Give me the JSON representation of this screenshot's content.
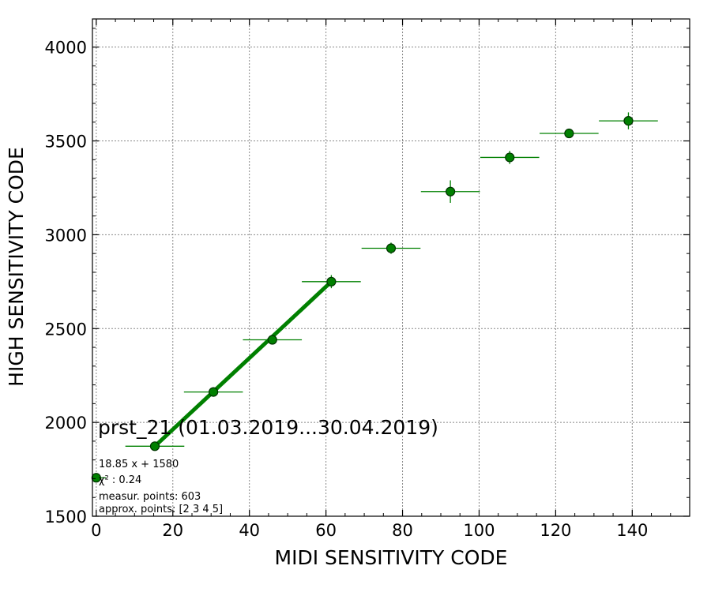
{
  "chart_data": {
    "type": "scatter",
    "title": "prst_21 (01.03.2019...30.04.2019)",
    "xlabel": "MIDI SENSITIVITY CODE",
    "ylabel": "HIGH SENSITIVITY CODE",
    "xlim": [
      -1,
      155
    ],
    "ylim": [
      1500,
      4150
    ],
    "xticks": [
      0,
      20,
      40,
      60,
      80,
      100,
      120,
      140
    ],
    "yticks": [
      1500,
      2000,
      2500,
      3000,
      3500,
      4000
    ],
    "grid": true,
    "colors": {
      "marker_fill": "#008000",
      "marker_edge": "#003300",
      "fit_line": "#008000",
      "errorbar": "#008000"
    },
    "series": [
      {
        "kind": "measurements",
        "points": [
          {
            "x": 0,
            "y": 1705,
            "xerr": 0,
            "yerr": 0
          },
          {
            "x": 15.3,
            "y": 1873,
            "xerr": 7.7,
            "yerr": 8
          },
          {
            "x": 30.6,
            "y": 2162,
            "xerr": 7.7,
            "yerr": 12
          },
          {
            "x": 46,
            "y": 2440,
            "xerr": 7.7,
            "yerr": 25
          },
          {
            "x": 61.4,
            "y": 2750,
            "xerr": 7.7,
            "yerr": 35
          },
          {
            "x": 77,
            "y": 2928,
            "xerr": 7.7,
            "yerr": 30
          },
          {
            "x": 92.5,
            "y": 3230,
            "xerr": 7.7,
            "yerr": 60
          },
          {
            "x": 108,
            "y": 3412,
            "xerr": 7.7,
            "yerr": 35
          },
          {
            "x": 123.5,
            "y": 3540,
            "xerr": 7.7,
            "yerr": 25
          },
          {
            "x": 139,
            "y": 3607,
            "xerr": 7.7,
            "yerr": 45
          }
        ]
      },
      {
        "kind": "fit",
        "x": [
          15.3,
          61.4
        ],
        "y": [
          1873,
          2750
        ]
      }
    ],
    "annotations": {
      "fit_equation": "18.85 x + 1580",
      "chi2": "χ² : 0.24",
      "measured_points": "measur. points: 603",
      "approx_points": "approx. points: [2 3 4 5]"
    }
  }
}
